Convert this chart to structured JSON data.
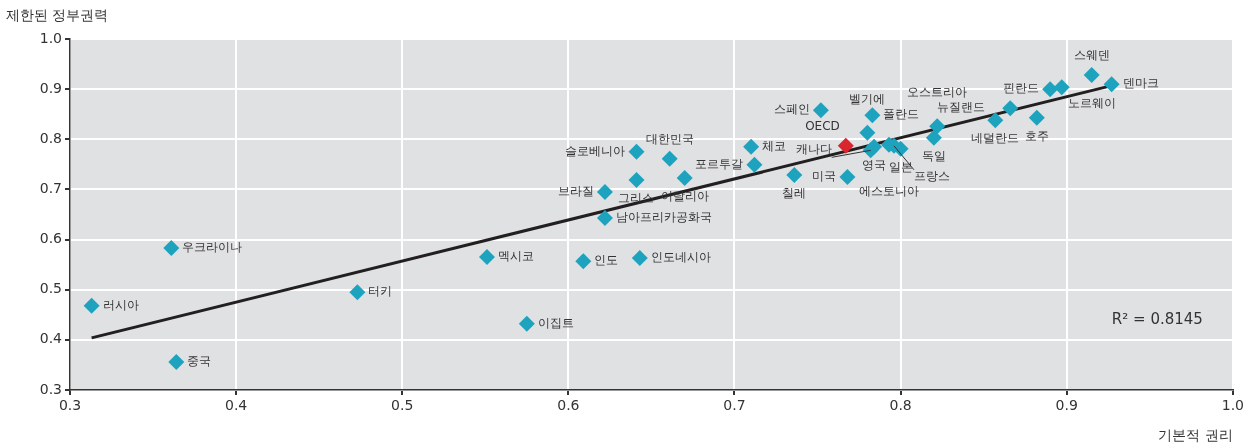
{
  "chart_data": {
    "type": "scatter",
    "xlabel": "기본적 권리",
    "ylabel": "제한된 정부권력",
    "marker": "diamond",
    "grid": true,
    "legend": false,
    "xlim": [
      0.3,
      1.0
    ],
    "xticks": [
      {
        "value": 0.3,
        "label": "0.3"
      },
      {
        "value": 0.4,
        "label": "0.4"
      },
      {
        "value": 0.5,
        "label": "0.5"
      },
      {
        "value": 0.6,
        "label": "0.6"
      },
      {
        "value": 0.7,
        "label": "0.7"
      },
      {
        "value": 0.8,
        "label": "0.8"
      },
      {
        "value": 0.9,
        "label": "0.9"
      },
      {
        "value": 1.0,
        "label": "1.0"
      }
    ],
    "ylim": [
      0.3,
      1.0
    ],
    "yticks": [
      {
        "value": 0.3,
        "label": "0.3"
      },
      {
        "value": 0.4,
        "label": "0.4"
      },
      {
        "value": 0.5,
        "label": "0.5"
      },
      {
        "value": 0.6,
        "label": "0.6"
      },
      {
        "value": 0.7,
        "label": "0.7"
      },
      {
        "value": 0.8,
        "label": "0.8"
      },
      {
        "value": 0.9,
        "label": "0.9"
      },
      {
        "value": 1.0,
        "label": "1.0"
      }
    ],
    "series": [
      {
        "color": "#1ea3bf",
        "x": [
          0.313,
          0.364,
          0.361,
          0.473,
          0.551,
          0.575,
          0.609,
          0.643,
          0.622,
          0.622,
          0.641,
          0.641,
          0.661,
          0.67,
          0.71,
          0.712,
          0.736,
          0.752,
          0.768,
          0.783,
          0.78,
          0.784,
          0.782,
          0.793,
          0.796,
          0.8,
          0.82,
          0.822,
          0.857,
          0.866,
          0.882,
          0.89,
          0.897,
          0.915,
          0.927
        ],
        "values": [
          0.468,
          0.356,
          0.583,
          0.495,
          0.565,
          0.432,
          0.557,
          0.563,
          0.643,
          0.695,
          0.719,
          0.775,
          0.761,
          0.723,
          0.785,
          0.749,
          0.729,
          0.858,
          0.725,
          0.848,
          0.813,
          0.785,
          0.778,
          0.789,
          0.787,
          0.781,
          0.803,
          0.826,
          0.838,
          0.862,
          0.843,
          0.9,
          0.904,
          0.928,
          0.91
        ]
      },
      {
        "color": "#d9262e",
        "x": [
          0.767
        ],
        "values": [
          0.787
        ]
      },
      {
        "type": "line",
        "marker": "none",
        "color": "#231f20",
        "x": [
          0.313,
          0.927
        ],
        "values": [
          0.404,
          0.907
        ]
      }
    ],
    "annotations": [
      {
        "text": "러시아",
        "x": 0.313,
        "y": 0.468
      },
      {
        "text": "중국",
        "x": 0.364,
        "y": 0.356
      },
      {
        "text": "우크라이나",
        "x": 0.361,
        "y": 0.583
      },
      {
        "text": "터키",
        "x": 0.473,
        "y": 0.495
      },
      {
        "text": "멕시코",
        "x": 0.551,
        "y": 0.565
      },
      {
        "text": "이집트",
        "x": 0.575,
        "y": 0.432
      },
      {
        "text": "인도",
        "x": 0.609,
        "y": 0.557
      },
      {
        "text": "인도네시아",
        "x": 0.643,
        "y": 0.563
      },
      {
        "text": "남아프리카공화국",
        "x": 0.622,
        "y": 0.643
      },
      {
        "text": "브라질",
        "x": 0.622,
        "y": 0.695
      },
      {
        "text": "그리스",
        "x": 0.641,
        "y": 0.719
      },
      {
        "text": "슬로베니아",
        "x": 0.641,
        "y": 0.775
      },
      {
        "text": "대한민국",
        "x": 0.661,
        "y": 0.761
      },
      {
        "text": "이탈리아",
        "x": 0.67,
        "y": 0.723
      },
      {
        "text": "체코",
        "x": 0.71,
        "y": 0.785
      },
      {
        "text": "포르투갈",
        "x": 0.712,
        "y": 0.749
      },
      {
        "text": "칠레",
        "x": 0.736,
        "y": 0.729
      },
      {
        "text": "스페인",
        "x": 0.752,
        "y": 0.858
      },
      {
        "text": "미국",
        "x": 0.768,
        "y": 0.725
      },
      {
        "text": "폴란드",
        "x": 0.783,
        "y": 0.848
      },
      {
        "text": "벨기에",
        "x": 0.78,
        "y": 0.813
      },
      {
        "text": "영국",
        "x": 0.784,
        "y": 0.785
      },
      {
        "text": "캐나다",
        "x": 0.782,
        "y": 0.778
      },
      {
        "text": "에스토니아",
        "x": 0.793,
        "y": 0.789
      },
      {
        "text": "프랑스",
        "x": 0.796,
        "y": 0.787
      },
      {
        "text": "일본",
        "x": 0.8,
        "y": 0.781
      },
      {
        "text": "독일",
        "x": 0.82,
        "y": 0.803
      },
      {
        "text": "오스트리아",
        "x": 0.822,
        "y": 0.826
      },
      {
        "text": "네덜란드",
        "x": 0.857,
        "y": 0.838
      },
      {
        "text": "뉴질랜드",
        "x": 0.866,
        "y": 0.862
      },
      {
        "text": "호주",
        "x": 0.882,
        "y": 0.843
      },
      {
        "text": "핀란드",
        "x": 0.89,
        "y": 0.9
      },
      {
        "text": "노르웨이",
        "x": 0.897,
        "y": 0.904
      },
      {
        "text": "스웨덴",
        "x": 0.915,
        "y": 0.928
      },
      {
        "text": "덴마크",
        "x": 0.927,
        "y": 0.91
      },
      {
        "text": "OECD",
        "x": 0.767,
        "y": 0.787
      },
      "R² = 0.8145"
    ]
  }
}
